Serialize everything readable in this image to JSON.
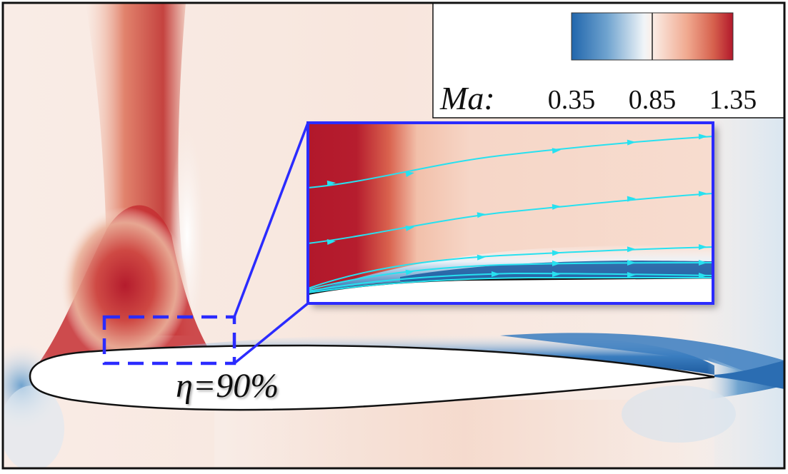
{
  "figure": {
    "contour_variable": "Ma:",
    "colorbar": {
      "tick_labels": [
        "0.35",
        "0.85",
        "1.35"
      ],
      "min": 0.35,
      "mid": 0.85,
      "max": 1.35,
      "colors": [
        "#2166ac",
        "#f7f7f7",
        "#b2182b"
      ]
    },
    "case_label": "η=90%",
    "colors": {
      "frame": "#111111",
      "zoom_box": "#2b2bff",
      "streamlines": "#27e1f0",
      "airfoil_fill": "#ffffff",
      "supersonic": "#b2182b",
      "subsonic": "#2166ac",
      "freestream": "#f7e3d9"
    },
    "icons": {
      "streamline_arrow": "arrowhead-icon"
    }
  }
}
